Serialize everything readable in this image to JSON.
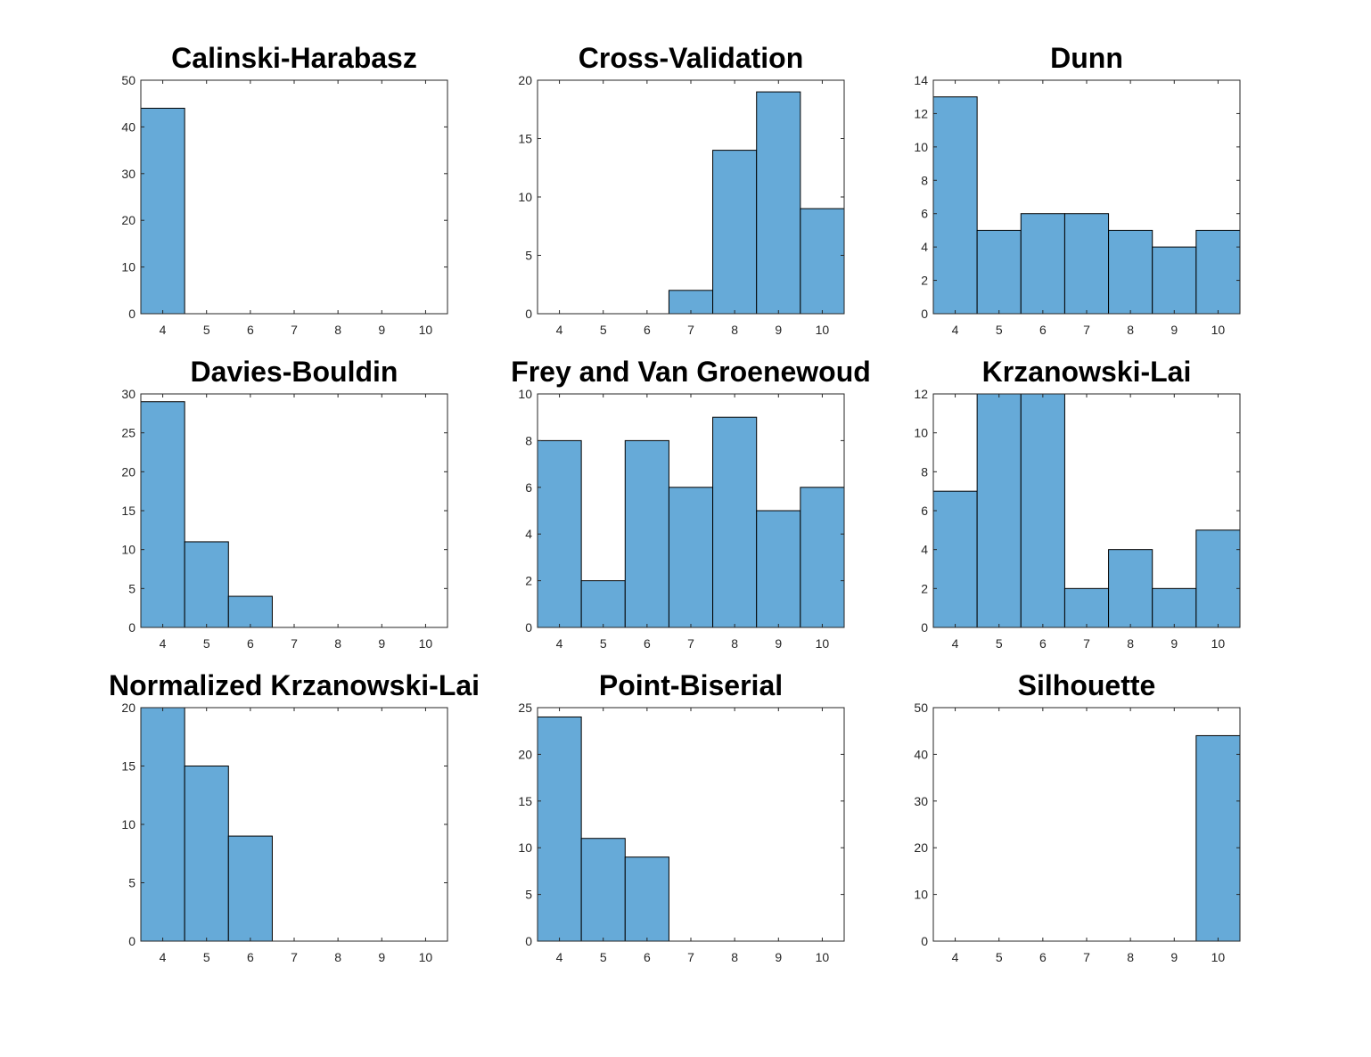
{
  "bar_color": "#66aad8",
  "chart_data": [
    {
      "type": "bar",
      "title": "Calinski-Harabasz",
      "categories": [
        4,
        5,
        6,
        7,
        8,
        9,
        10
      ],
      "values": [
        44,
        0,
        0,
        0,
        0,
        0,
        0
      ],
      "ylim": [
        0,
        50
      ],
      "yticks": [
        0,
        10,
        20,
        30,
        40,
        50
      ]
    },
    {
      "type": "bar",
      "title": "Cross-Validation",
      "categories": [
        4,
        5,
        6,
        7,
        8,
        9,
        10
      ],
      "values": [
        0,
        0,
        0,
        2,
        14,
        19,
        9
      ],
      "ylim": [
        0,
        20
      ],
      "yticks": [
        0,
        5,
        10,
        15,
        20
      ]
    },
    {
      "type": "bar",
      "title": "Dunn",
      "categories": [
        4,
        5,
        6,
        7,
        8,
        9,
        10
      ],
      "values": [
        13,
        5,
        6,
        6,
        5,
        4,
        5
      ],
      "ylim": [
        0,
        14
      ],
      "yticks": [
        0,
        2,
        4,
        6,
        8,
        10,
        12,
        14
      ]
    },
    {
      "type": "bar",
      "title": "Davies-Bouldin",
      "categories": [
        4,
        5,
        6,
        7,
        8,
        9,
        10
      ],
      "values": [
        29,
        11,
        4,
        0,
        0,
        0,
        0
      ],
      "ylim": [
        0,
        30
      ],
      "yticks": [
        0,
        5,
        10,
        15,
        20,
        25,
        30
      ]
    },
    {
      "type": "bar",
      "title": "Frey and Van Groenewoud",
      "categories": [
        4,
        5,
        6,
        7,
        8,
        9,
        10
      ],
      "values": [
        8,
        2,
        8,
        6,
        9,
        5,
        6
      ],
      "ylim": [
        0,
        10
      ],
      "yticks": [
        0,
        2,
        4,
        6,
        8,
        10
      ]
    },
    {
      "type": "bar",
      "title": "Krzanowski-Lai",
      "categories": [
        4,
        5,
        6,
        7,
        8,
        9,
        10
      ],
      "values": [
        7,
        12,
        12,
        2,
        4,
        2,
        5
      ],
      "ylim": [
        0,
        12
      ],
      "yticks": [
        0,
        2,
        4,
        6,
        8,
        10,
        12
      ]
    },
    {
      "type": "bar",
      "title": "Normalized Krzanowski-Lai",
      "categories": [
        4,
        5,
        6,
        7,
        8,
        9,
        10
      ],
      "values": [
        20,
        15,
        9,
        0,
        0,
        0,
        0
      ],
      "ylim": [
        0,
        20
      ],
      "yticks": [
        0,
        5,
        10,
        15,
        20
      ]
    },
    {
      "type": "bar",
      "title": "Point-Biserial",
      "categories": [
        4,
        5,
        6,
        7,
        8,
        9,
        10
      ],
      "values": [
        24,
        11,
        9,
        0,
        0,
        0,
        0
      ],
      "ylim": [
        0,
        25
      ],
      "yticks": [
        0,
        5,
        10,
        15,
        20,
        25
      ]
    },
    {
      "type": "bar",
      "title": "Silhouette",
      "categories": [
        4,
        5,
        6,
        7,
        8,
        9,
        10
      ],
      "values": [
        0,
        0,
        0,
        0,
        0,
        0,
        44
      ],
      "ylim": [
        0,
        50
      ],
      "yticks": [
        0,
        10,
        20,
        30,
        40,
        50
      ]
    }
  ]
}
